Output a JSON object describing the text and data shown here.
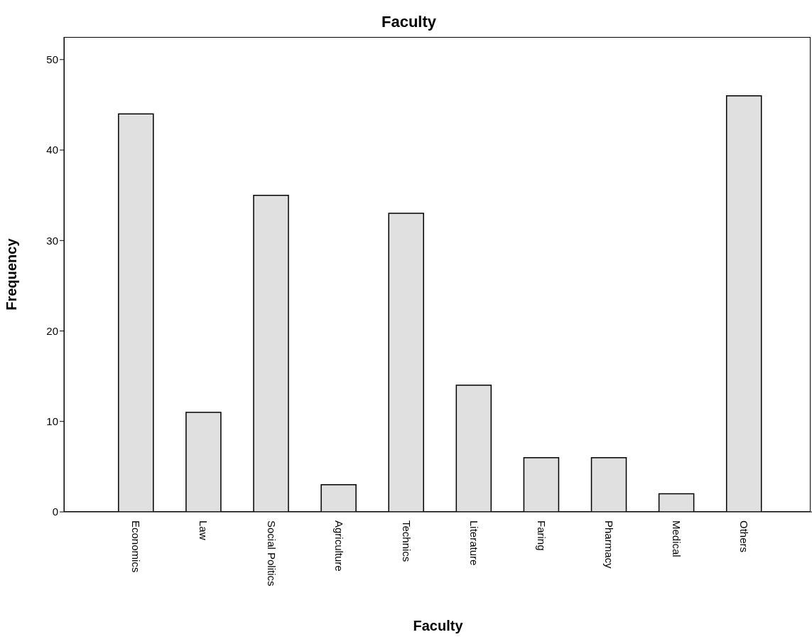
{
  "chart_data": {
    "type": "bar",
    "title": "Faculty",
    "xlabel": "Faculty",
    "ylabel": "Frequency",
    "categories": [
      "Economics",
      "Law",
      "Social Politics",
      "Agriculture",
      "Technics",
      "Literature",
      "Faring",
      "Pharmacy",
      "Medical",
      "Others"
    ],
    "values": [
      44,
      11,
      35,
      3,
      33,
      14,
      6,
      6,
      2,
      46
    ],
    "color": "#e0e0e0",
    "ylim": [
      0,
      52.5
    ],
    "yticks": [
      0,
      10,
      20,
      30,
      40,
      50
    ],
    "grid": false,
    "legend": false
  }
}
